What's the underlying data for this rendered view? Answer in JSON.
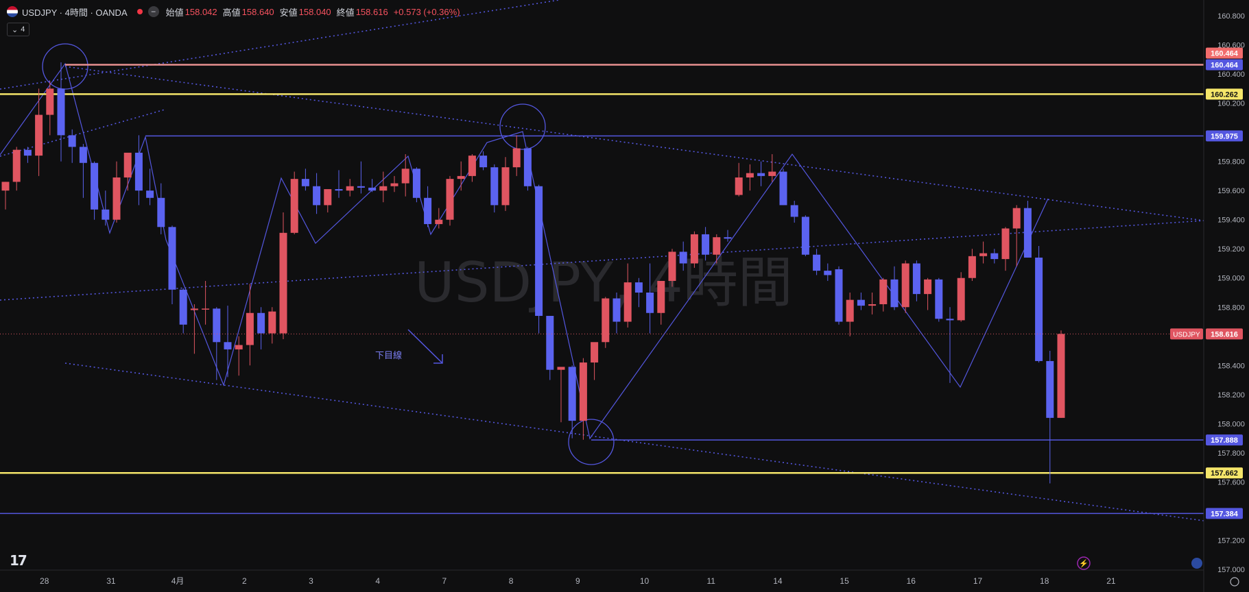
{
  "header": {
    "symbol": "USDJPY · 4時間 · OANDA",
    "open_label": "始値",
    "open": "158.042",
    "high_label": "高値",
    "high": "158.640",
    "low_label": "安値",
    "low": "158.040",
    "close_label": "終値",
    "close": "158.616",
    "change": "+0.573 (+0.36%)",
    "indicator_count": "4"
  },
  "watermark": "USDJPY, 4時間",
  "annotation_text": "下目線",
  "colors": {
    "background": "#0f0f10",
    "up": "#e05561",
    "down": "#5b63f0",
    "blue_line": "#5457e0",
    "yellow_line": "#f5e66a",
    "red_line": "#e89090"
  },
  "chart_data": {
    "type": "candlestick",
    "y_ticks": [
      "160.800",
      "160.600",
      "160.400",
      "160.200",
      "159.800",
      "159.600",
      "159.400",
      "159.200",
      "159.000",
      "158.800",
      "158.400",
      "158.200",
      "158.000",
      "157.800",
      "157.600",
      "157.200",
      "157.000"
    ],
    "x_ticks": [
      {
        "label": "28",
        "i": 3.5
      },
      {
        "label": "31",
        "i": 9.5
      },
      {
        "label": "4月",
        "i": 15.5
      },
      {
        "label": "2",
        "i": 21.5
      },
      {
        "label": "3",
        "i": 27.5
      },
      {
        "label": "4",
        "i": 33.5
      },
      {
        "label": "7",
        "i": 39.5
      },
      {
        "label": "8",
        "i": 45.5
      },
      {
        "label": "9",
        "i": 51.5
      },
      {
        "label": "10",
        "i": 57.5
      },
      {
        "label": "11",
        "i": 63.5
      },
      {
        "label": "14",
        "i": 69.5
      },
      {
        "label": "15",
        "i": 75.5
      },
      {
        "label": "16",
        "i": 81.5
      },
      {
        "label": "17",
        "i": 87.5
      },
      {
        "label": "18",
        "i": 93.5
      },
      {
        "label": "21",
        "i": 99.5
      }
    ],
    "ylim": [
      156.98,
      160.88
    ],
    "candles": [
      [
        159.6,
        159.66,
        159.47,
        159.66
      ],
      [
        159.66,
        159.9,
        159.6,
        159.88
      ],
      [
        159.88,
        159.9,
        159.79,
        159.84
      ],
      [
        159.84,
        160.3,
        159.7,
        160.12
      ],
      [
        160.12,
        160.35,
        159.98,
        160.3
      ],
      [
        160.3,
        160.48,
        159.8,
        159.98
      ],
      [
        159.98,
        160.02,
        159.79,
        159.9
      ],
      [
        159.9,
        159.92,
        159.55,
        159.79
      ],
      [
        159.79,
        159.8,
        159.4,
        159.47
      ],
      [
        159.47,
        159.6,
        159.36,
        159.4
      ],
      [
        159.4,
        159.8,
        159.38,
        159.69
      ],
      [
        159.69,
        159.85,
        159.6,
        159.86
      ],
      [
        159.86,
        159.98,
        159.5,
        159.6
      ],
      [
        159.6,
        159.75,
        159.5,
        159.55
      ],
      [
        159.55,
        159.65,
        159.3,
        159.35
      ],
      [
        159.35,
        159.36,
        158.82,
        158.92
      ],
      [
        158.92,
        158.93,
        158.62,
        158.68
      ],
      [
        158.78,
        158.82,
        158.48,
        158.79
      ],
      [
        158.79,
        158.98,
        158.68,
        158.79
      ],
      [
        158.79,
        158.8,
        158.3,
        158.56
      ],
      [
        158.56,
        158.81,
        158.32,
        158.51
      ],
      [
        158.51,
        158.6,
        158.33,
        158.54
      ],
      [
        158.54,
        158.96,
        158.4,
        158.76
      ],
      [
        158.76,
        158.8,
        158.51,
        158.62
      ],
      [
        158.62,
        158.8,
        158.55,
        158.77
      ],
      [
        158.62,
        159.45,
        158.58,
        159.31
      ],
      [
        159.31,
        159.73,
        159.3,
        159.68
      ],
      [
        159.68,
        159.75,
        159.6,
        159.63
      ],
      [
        159.63,
        159.72,
        159.44,
        159.5
      ],
      [
        159.5,
        159.6,
        159.45,
        159.61
      ],
      [
        159.61,
        159.74,
        159.55,
        159.6
      ],
      [
        159.6,
        159.68,
        159.56,
        159.63
      ],
      [
        159.63,
        159.8,
        159.58,
        159.62
      ],
      [
        159.62,
        159.68,
        159.59,
        159.6
      ],
      [
        159.6,
        159.73,
        159.52,
        159.63
      ],
      [
        159.63,
        159.7,
        159.59,
        159.65
      ],
      [
        159.65,
        159.85,
        159.56,
        159.75
      ],
      [
        159.75,
        159.76,
        159.52,
        159.55
      ],
      [
        159.55,
        159.63,
        159.35,
        159.37
      ],
      [
        159.37,
        159.48,
        159.34,
        159.4
      ],
      [
        159.4,
        159.7,
        159.36,
        159.68
      ],
      [
        159.68,
        159.8,
        159.6,
        159.7
      ],
      [
        159.7,
        159.85,
        159.66,
        159.84
      ],
      [
        159.84,
        159.87,
        159.74,
        159.76
      ],
      [
        159.76,
        159.78,
        159.45,
        159.5
      ],
      [
        159.5,
        159.83,
        159.46,
        159.76
      ],
      [
        159.76,
        159.98,
        159.7,
        159.89
      ],
      [
        159.89,
        159.9,
        159.6,
        159.63
      ],
      [
        159.63,
        159.64,
        158.62,
        158.74
      ],
      [
        158.74,
        158.74,
        158.3,
        158.37
      ],
      [
        158.37,
        158.38,
        158.01,
        158.39
      ],
      [
        158.39,
        158.4,
        157.9,
        158.02
      ],
      [
        158.02,
        158.45,
        157.89,
        158.42
      ],
      [
        158.42,
        158.55,
        158.3,
        158.56
      ],
      [
        158.56,
        158.87,
        158.52,
        158.86
      ],
      [
        158.86,
        158.9,
        158.62,
        158.7
      ],
      [
        158.7,
        159.1,
        158.66,
        158.97
      ],
      [
        158.97,
        159.0,
        158.8,
        158.9
      ],
      [
        158.9,
        159.1,
        158.62,
        158.76
      ],
      [
        158.76,
        158.98,
        158.68,
        158.98
      ],
      [
        158.98,
        159.2,
        158.94,
        159.18
      ],
      [
        159.18,
        159.25,
        159.05,
        159.1
      ],
      [
        159.1,
        159.32,
        159.07,
        159.3
      ],
      [
        159.3,
        159.35,
        159.12,
        159.16
      ],
      [
        159.16,
        159.3,
        159.1,
        159.28
      ],
      [
        159.28,
        159.33,
        159.25,
        159.27
      ],
      [
        159.57,
        159.79,
        159.56,
        159.69
      ],
      [
        159.69,
        159.78,
        159.6,
        159.72
      ],
      [
        159.72,
        159.8,
        159.63,
        159.7
      ],
      [
        159.7,
        159.85,
        159.66,
        159.73
      ],
      [
        159.73,
        159.75,
        159.5,
        159.5
      ],
      [
        159.5,
        159.53,
        159.38,
        159.42
      ],
      [
        159.42,
        159.43,
        159.15,
        159.16
      ],
      [
        159.16,
        159.2,
        159.02,
        159.05
      ],
      [
        159.05,
        159.1,
        158.98,
        159.02
      ],
      [
        159.06,
        159.08,
        158.68,
        158.7
      ],
      [
        158.7,
        158.9,
        158.6,
        158.85
      ],
      [
        158.85,
        158.9,
        158.78,
        158.81
      ],
      [
        158.81,
        158.9,
        158.75,
        158.82
      ],
      [
        158.82,
        159.0,
        158.77,
        158.99
      ],
      [
        158.99,
        159.08,
        158.78,
        158.8
      ],
      [
        158.8,
        159.12,
        158.76,
        159.1
      ],
      [
        159.1,
        159.12,
        158.84,
        158.89
      ],
      [
        158.89,
        159.0,
        158.78,
        158.99
      ],
      [
        158.99,
        159.0,
        158.7,
        158.72
      ],
      [
        158.72,
        158.8,
        158.28,
        158.71
      ],
      [
        158.71,
        159.04,
        158.7,
        159.0
      ],
      [
        159.0,
        159.2,
        158.98,
        159.15
      ],
      [
        159.15,
        159.25,
        159.1,
        159.17
      ],
      [
        159.17,
        159.2,
        159.1,
        159.13
      ],
      [
        159.13,
        159.35,
        159.05,
        159.34
      ],
      [
        159.34,
        159.5,
        159.08,
        159.48
      ],
      [
        159.48,
        159.53,
        159.14,
        159.14
      ],
      [
        159.14,
        159.22,
        158.42,
        158.43
      ],
      [
        158.43,
        158.5,
        157.59,
        158.04
      ],
      [
        158.04,
        158.64,
        158.04,
        158.616
      ]
    ],
    "horizontal_levels": [
      {
        "price": 160.464,
        "label": "160.464",
        "color": "#e89090"
      },
      {
        "price": 160.262,
        "label": "160.262",
        "color": "#f5e66a"
      },
      {
        "price": 159.975,
        "label": "159.975",
        "color": "#5457e0"
      },
      {
        "price": 157.888,
        "label": "157.888",
        "color": "#5457e0"
      },
      {
        "price": 157.662,
        "label": "157.662",
        "color": "#f5e66a"
      },
      {
        "price": 157.384,
        "label": "157.384",
        "color": "#5457e0"
      }
    ],
    "extra_price_labels": [
      {
        "label": "160.464",
        "color": "#f26c6c"
      }
    ],
    "current_price": {
      "price": 158.616,
      "label": "158.616",
      "symbol": "USDJPY"
    }
  }
}
